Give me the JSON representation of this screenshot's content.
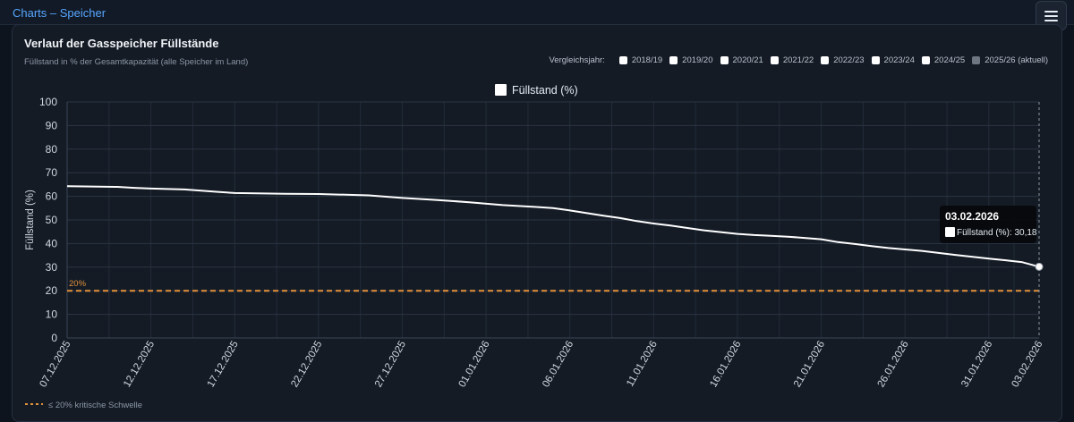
{
  "header": {
    "title": "Charts – Speicher"
  },
  "card": {
    "title": "Verlauf der Gasspeicher Füllstände",
    "subtitle": "Füllstand in % der Gesamtkapazität (alle Speicher im Land)",
    "compare_label": "Vergleichsjahr:",
    "compare_years": [
      {
        "label": "2018/19",
        "checked": false,
        "disabled": false
      },
      {
        "label": "2019/20",
        "checked": false,
        "disabled": false
      },
      {
        "label": "2020/21",
        "checked": false,
        "disabled": false
      },
      {
        "label": "2021/22",
        "checked": false,
        "disabled": false
      },
      {
        "label": "2022/23",
        "checked": false,
        "disabled": false
      },
      {
        "label": "2023/24",
        "checked": false,
        "disabled": false
      },
      {
        "label": "2024/25",
        "checked": false,
        "disabled": false
      },
      {
        "label": "2025/26 (aktuell)",
        "checked": true,
        "disabled": true
      }
    ]
  },
  "chart_data": {
    "type": "line",
    "legend": "Füllstand (%)",
    "ylabel": "Füllstand (%)",
    "ylim": [
      0,
      100
    ],
    "yticks": [
      0,
      10,
      20,
      30,
      40,
      50,
      60,
      70,
      80,
      90,
      100
    ],
    "xtick_labels": [
      "07.12.2025",
      "12.12.2025",
      "17.12.2025",
      "22.12.2025",
      "27.12.2025",
      "01.01.2026",
      "06.01.2026",
      "11.01.2026",
      "16.01.2026",
      "21.01.2026",
      "26.01.2026",
      "31.01.2026",
      "03.02.2026"
    ],
    "xtick_days": [
      0,
      5,
      10,
      15,
      20,
      25,
      30,
      35,
      40,
      45,
      50,
      55,
      58
    ],
    "series": [
      {
        "name": "Füllstand (%)",
        "color": "#ffffff",
        "points": [
          [
            0,
            64.3
          ],
          [
            1,
            64.2
          ],
          [
            3,
            64.0
          ],
          [
            4,
            63.6
          ],
          [
            5,
            63.3
          ],
          [
            7,
            62.9
          ],
          [
            8,
            62.4
          ],
          [
            9,
            61.9
          ],
          [
            10,
            61.4
          ],
          [
            13,
            61.1
          ],
          [
            15,
            61.0
          ],
          [
            18,
            60.4
          ],
          [
            20,
            59.3
          ],
          [
            22,
            58.5
          ],
          [
            24,
            57.5
          ],
          [
            26,
            56.3
          ],
          [
            28,
            55.5
          ],
          [
            29,
            55.0
          ],
          [
            30,
            54.0
          ],
          [
            32,
            51.8
          ],
          [
            33,
            50.8
          ],
          [
            34,
            49.5
          ],
          [
            35,
            48.5
          ],
          [
            36,
            47.6
          ],
          [
            38,
            45.6
          ],
          [
            40,
            44.1
          ],
          [
            41,
            43.6
          ],
          [
            42,
            43.3
          ],
          [
            43,
            42.9
          ],
          [
            44,
            42.4
          ],
          [
            45,
            41.8
          ],
          [
            46,
            40.6
          ],
          [
            47,
            39.8
          ],
          [
            48,
            38.9
          ],
          [
            49,
            38.1
          ],
          [
            51,
            36.9
          ],
          [
            53,
            35.2
          ],
          [
            55,
            33.6
          ],
          [
            56,
            32.9
          ],
          [
            57,
            32.1
          ],
          [
            58,
            30.18
          ]
        ]
      }
    ],
    "threshold": {
      "value": 20,
      "label": "20%",
      "color": "#e3913b",
      "legend_label": "≤ 20% kritische Schwelle"
    },
    "tooltip": {
      "date": "03.02.2026",
      "label": "Füllstand (%): 30,18"
    }
  }
}
